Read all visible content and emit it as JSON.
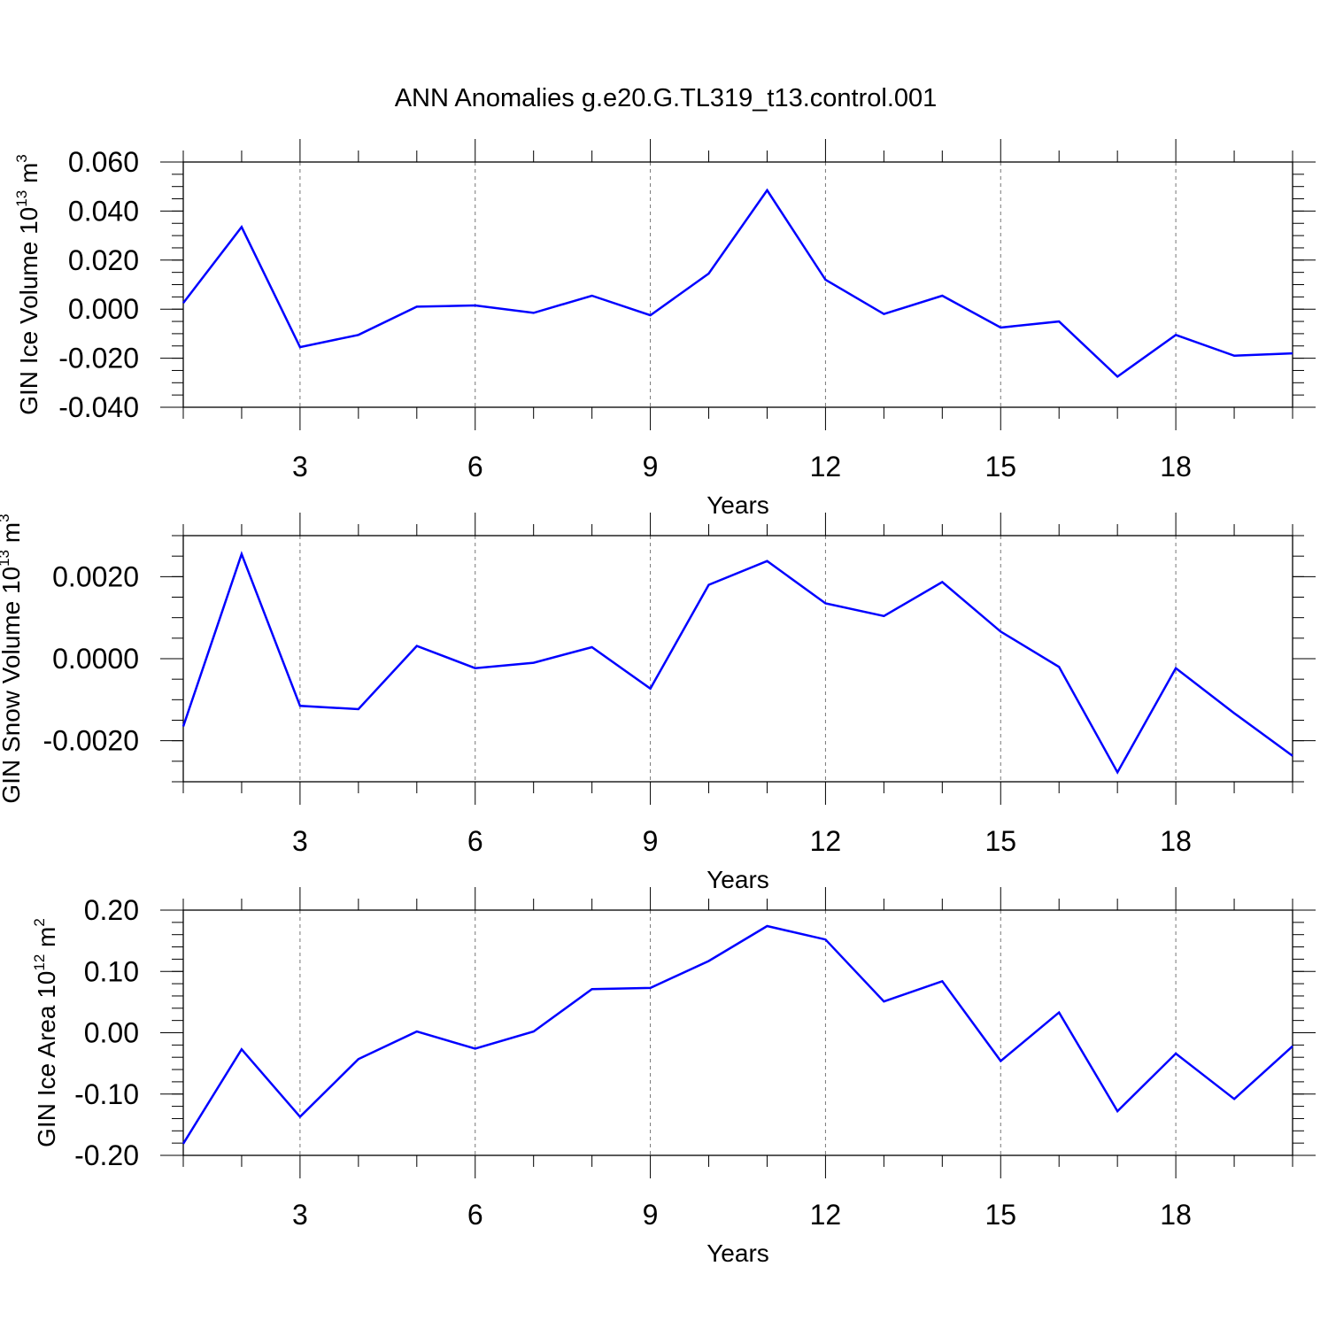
{
  "title": "ANN Anomalies g.e20.G.TL319_t13.control.001",
  "chart_data": [
    {
      "type": "line",
      "ylabel": "GIN Ice Volume",
      "ylabel_unit_base": "10",
      "ylabel_unit_exp": "13",
      "ylabel_unit": "m",
      "ylabel_unit_sup": "3",
      "xlabel": "Years",
      "xlim": [
        1,
        20
      ],
      "ylim": [
        -0.04,
        0.06
      ],
      "xticks": [
        3,
        6,
        9,
        12,
        15,
        18
      ],
      "xtick_labels": [
        "3",
        "6",
        "9",
        "12",
        "15",
        "18"
      ],
      "yticks": [
        -0.04,
        -0.02,
        0.0,
        0.02,
        0.04,
        0.06
      ],
      "ytick_labels": [
        "-0.040",
        "-0.020",
        "0.000",
        "0.020",
        "0.040",
        "0.060"
      ],
      "ytick_minor_step": 0.005,
      "grid": "vertical dashed at major x ticks",
      "color": "#0000ff",
      "x": [
        1,
        2,
        3,
        4,
        5,
        6,
        7,
        8,
        9,
        10,
        11,
        12,
        13,
        14,
        15,
        16,
        17,
        18,
        19,
        20
      ],
      "values": [
        0.0025,
        0.0335,
        -0.0155,
        -0.0105,
        0.001,
        0.0015,
        -0.0015,
        0.0055,
        -0.0025,
        0.0145,
        0.0485,
        0.012,
        -0.002,
        0.0055,
        -0.0075,
        -0.005,
        -0.0275,
        -0.0105,
        -0.019,
        -0.018
      ]
    },
    {
      "type": "line",
      "ylabel": "GIN Snow Volume",
      "ylabel_unit_base": "10",
      "ylabel_unit_exp": "13",
      "ylabel_unit": "m",
      "ylabel_unit_sup": "3",
      "xlabel": "Years",
      "xlim": [
        1,
        20
      ],
      "ylim": [
        -0.003,
        0.003
      ],
      "xticks": [
        3,
        6,
        9,
        12,
        15,
        18
      ],
      "xtick_labels": [
        "3",
        "6",
        "9",
        "12",
        "15",
        "18"
      ],
      "yticks": [
        -0.002,
        0.0,
        0.002
      ],
      "ytick_labels": [
        "-0.0020",
        "0.0000",
        "0.0020"
      ],
      "ytick_minor_step": 0.0005,
      "grid": "vertical dashed at major x ticks",
      "color": "#0000ff",
      "x": [
        1,
        2,
        3,
        4,
        5,
        6,
        7,
        8,
        9,
        10,
        11,
        12,
        13,
        14,
        15,
        16,
        17,
        18,
        19,
        20
      ],
      "values": [
        -0.00165,
        0.00255,
        -0.00115,
        -0.00123,
        0.00031,
        -0.00023,
        -0.0001,
        0.00028,
        -0.00073,
        0.0018,
        0.00238,
        0.00135,
        0.00104,
        0.00187,
        0.00066,
        -0.0002,
        -0.00277,
        -0.00023,
        -0.00133,
        -0.00237
      ]
    },
    {
      "type": "line",
      "ylabel": "GIN Ice Area",
      "ylabel_unit_base": "10",
      "ylabel_unit_exp": "12",
      "ylabel_unit": "m",
      "ylabel_unit_sup": "2",
      "xlabel": "Years",
      "xlim": [
        1,
        20
      ],
      "ylim": [
        -0.2,
        0.2
      ],
      "xticks": [
        3,
        6,
        9,
        12,
        15,
        18
      ],
      "xtick_labels": [
        "3",
        "6",
        "9",
        "12",
        "15",
        "18"
      ],
      "yticks": [
        -0.2,
        -0.1,
        0.0,
        0.1,
        0.2
      ],
      "ytick_labels": [
        "-0.20",
        "-0.10",
        "0.00",
        "0.10",
        "0.20"
      ],
      "ytick_minor_step": 0.02,
      "grid": "vertical dashed at major x ticks",
      "color": "#0000ff",
      "x": [
        1,
        2,
        3,
        4,
        5,
        6,
        7,
        8,
        9,
        10,
        11,
        12,
        13,
        14,
        15,
        16,
        17,
        18,
        19,
        20
      ],
      "values": [
        -0.181,
        -0.027,
        -0.137,
        -0.043,
        0.002,
        -0.026,
        0.002,
        0.071,
        0.073,
        0.117,
        0.174,
        0.152,
        0.051,
        0.084,
        -0.046,
        0.033,
        -0.128,
        -0.034,
        -0.108,
        -0.022
      ]
    }
  ]
}
